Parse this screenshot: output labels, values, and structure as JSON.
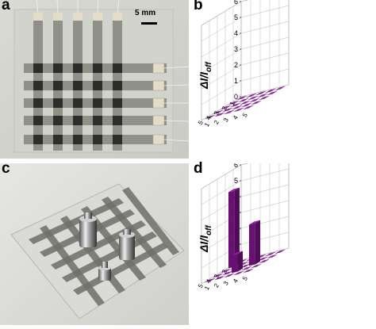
{
  "panels": {
    "a": {
      "label": "a",
      "scale_bar": "5 mm"
    },
    "b": {
      "label": "b"
    },
    "c": {
      "label": "c"
    },
    "d": {
      "label": "d"
    }
  },
  "chart_data": [
    {
      "panel": "b",
      "type": "bar",
      "zlabel_main": "ΔI/I",
      "zlabel_sub": "off",
      "zlim": [
        0,
        6
      ],
      "z_ticks": [
        "0",
        "1",
        "2",
        "3",
        "4",
        "5",
        "6"
      ],
      "row_ticks": [
        "1",
        "2",
        "3",
        "4",
        "5"
      ],
      "col_ticks": [
        "1",
        "2",
        "3",
        "4",
        "5"
      ],
      "grid": true,
      "bar_color": "#7a1487",
      "values": [
        [
          0,
          0,
          0,
          0,
          0
        ],
        [
          0,
          0,
          0,
          0,
          0
        ],
        [
          0,
          0,
          0,
          0,
          0
        ],
        [
          0,
          0,
          0,
          0,
          0
        ],
        [
          0,
          0,
          0,
          0,
          0
        ]
      ]
    },
    {
      "panel": "d",
      "type": "bar",
      "zlabel_main": "ΔI/I",
      "zlabel_sub": "off",
      "zlim": [
        0,
        6
      ],
      "z_ticks": [
        "0",
        "1",
        "2",
        "3",
        "4",
        "5",
        "6"
      ],
      "row_ticks": [
        "1",
        "2",
        "3",
        "4",
        "5"
      ],
      "col_ticks": [
        "1",
        "2",
        "3",
        "4",
        "5"
      ],
      "grid": true,
      "bar_color": "#7a1487",
      "values": [
        [
          0,
          0,
          0,
          0,
          0
        ],
        [
          4.8,
          0,
          0,
          0,
          0
        ],
        [
          0,
          0,
          0,
          2.6,
          0
        ],
        [
          0,
          0,
          1.1,
          0,
          0
        ],
        [
          0,
          0,
          0,
          0,
          0
        ]
      ]
    }
  ]
}
